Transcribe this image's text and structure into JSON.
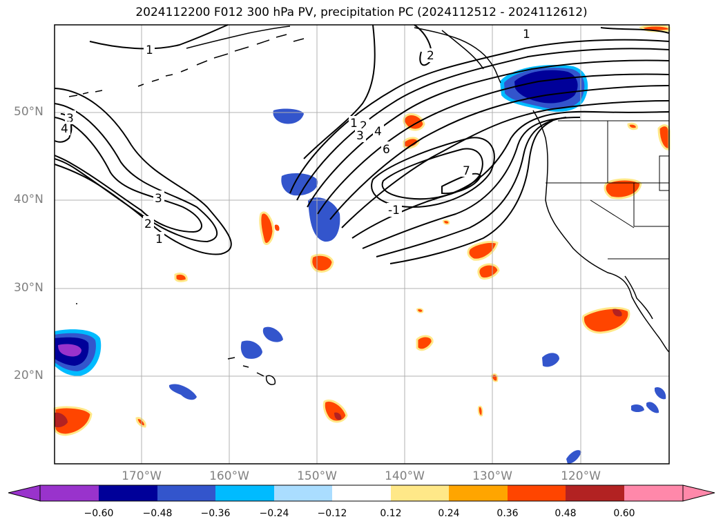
{
  "title": "2024112200 F012 300 hPa PV, precipitation PC (2024112512 - 2024112612)",
  "lat_labels": [
    "50°N",
    "40°N",
    "30°N",
    "20°N"
  ],
  "lon_labels": [
    "170°W",
    "160°W",
    "150°W",
    "140°W",
    "130°W",
    "120°W"
  ],
  "colorbar": {
    "colors": [
      "#9933cc",
      "#000099",
      "#3355cc",
      "#00bbff",
      "#aaddff",
      "#ffffff",
      "#ffe888",
      "#ffa500",
      "#ff4500",
      "#b22222",
      "#ff88aa"
    ],
    "ticks": [
      "−0.60",
      "−0.48",
      "−0.36",
      "−0.24",
      "−0.12",
      "0.12",
      "0.24",
      "0.36",
      "0.48",
      "0.60"
    ]
  },
  "contour_labels": [
    "1",
    "2",
    "3",
    "4",
    "6",
    "7",
    "-1"
  ]
}
